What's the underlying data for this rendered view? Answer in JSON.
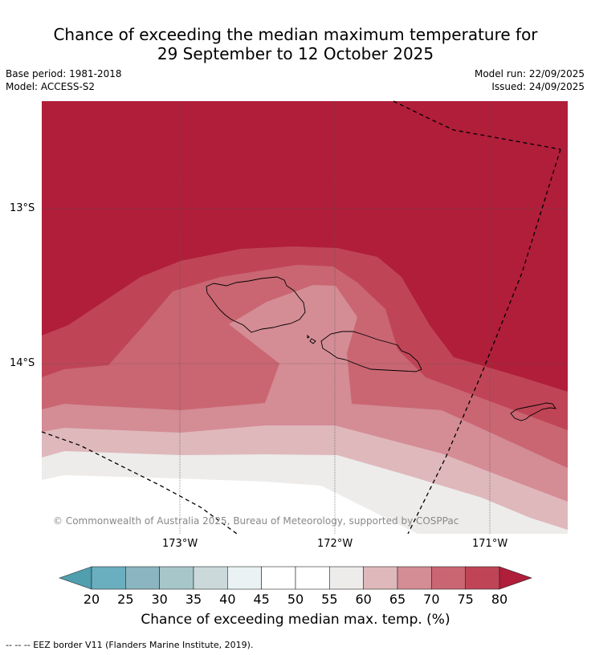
{
  "title": {
    "line1": "Chance of exceeding the median maximum temperature for",
    "line2": "29 September to 12 October 2025"
  },
  "meta": {
    "base_period": "Base period: 1981-2018",
    "model": "Model: ACCESS-S2",
    "model_run": "Model run: 22/09/2025",
    "issued": "Issued: 24/09/2025"
  },
  "axes": {
    "lat_labels": [
      "13°S",
      "14°S"
    ],
    "lon_labels": [
      "173°W",
      "172°W",
      "171°W"
    ]
  },
  "copyright": "© Commonwealth of Australia 2025, Bureau of Meteorology, supported by COSPPac",
  "colorbar": {
    "ticks": [
      "20",
      "25",
      "30",
      "35",
      "40",
      "45",
      "50",
      "55",
      "60",
      "65",
      "70",
      "75",
      "80"
    ],
    "label": "Chance of exceeding median max. temp. (%)",
    "colors": {
      "below20": "#4f9fae",
      "20-25": "#6aafbf",
      "25-30": "#8ab5c1",
      "30-35": "#a6c6ca",
      "35-40": "#ccd9db",
      "40-45": "#eaf2f3",
      "45-50": "#ffffff",
      "50-55": "#ffffff",
      "55-60": "#edecea",
      "60-65": "#dfb8bc",
      "65-70": "#d48c95",
      "70-75": "#c96672",
      "75-80": "#bf4556",
      "above80": "#b01e3a"
    }
  },
  "footnote": "--  --  -- EEZ border V11 (Flanders Marine Institute, 2019)."
}
